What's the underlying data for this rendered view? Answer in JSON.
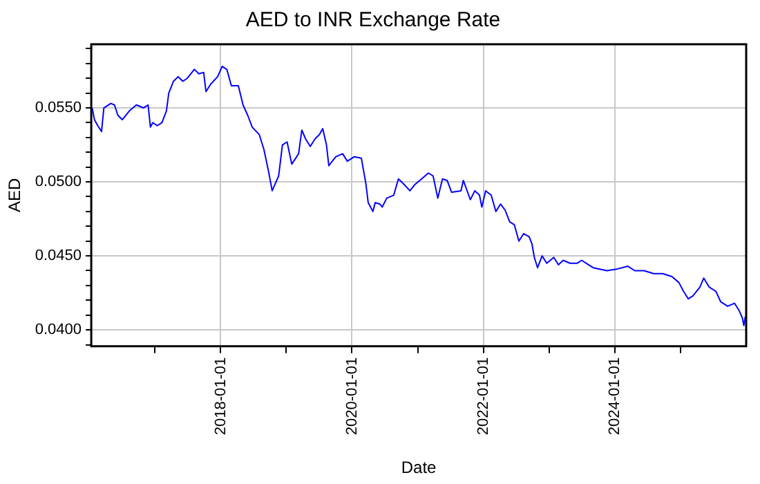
{
  "chart_data": {
    "type": "line",
    "title": "AED to INR Exchange Rate",
    "xlabel": "Date",
    "ylabel": "AED",
    "xlim": [
      "2016-01-12",
      "2026-01-01"
    ],
    "xticks": [
      {
        "value": "2017-01-01",
        "label": null
      },
      "2018-01-01",
      {
        "value": "2019-01-01",
        "label": null
      },
      "2020-01-01",
      {
        "value": "2021-01-01",
        "label": null
      },
      "2022-01-01",
      {
        "value": "2023-01-01",
        "label": null
      },
      "2024-01-01",
      {
        "value": "2025-01-01",
        "label": null
      }
    ],
    "ylim": [
      0.0389,
      0.0593
    ],
    "yticks": [
      {
        "value": 0.039,
        "label": null
      },
      {
        "value": 0.04,
        "label": "0.0400"
      },
      {
        "value": 0.041,
        "label": null
      },
      {
        "value": 0.042,
        "label": null
      },
      {
        "value": 0.043,
        "label": null
      },
      {
        "value": 0.044,
        "label": null
      },
      {
        "value": 0.045,
        "label": "0.0450"
      },
      {
        "value": 0.046,
        "label": null
      },
      {
        "value": 0.047,
        "label": null
      },
      {
        "value": 0.048,
        "label": null
      },
      {
        "value": 0.049,
        "label": null
      },
      {
        "value": 0.05,
        "label": "0.0500"
      },
      {
        "value": 0.051,
        "label": null
      },
      {
        "value": 0.052,
        "label": null
      },
      {
        "value": 0.053,
        "label": null
      },
      {
        "value": 0.054,
        "label": null
      },
      {
        "value": 0.055,
        "label": "0.0550"
      },
      {
        "value": 0.056,
        "label": null
      },
      {
        "value": 0.057,
        "label": null
      },
      {
        "value": 0.058,
        "label": null
      },
      {
        "value": 0.059,
        "label": null
      }
    ],
    "grid": true,
    "legend": false,
    "marker": "none",
    "line_style": "solid",
    "series": [
      {
        "color": "#0000ff",
        "x": [
          "2016-01-17",
          "2016-01-30",
          "2016-02-17",
          "2016-03-09",
          "2016-03-22",
          "2016-04-30",
          "2016-05-20",
          "2016-06-08",
          "2016-07-03",
          "2016-08-11",
          "2016-09-19",
          "2016-10-28",
          "2016-11-23",
          "2016-12-06",
          "2016-12-19",
          "2017-01-13",
          "2017-02-08",
          "2017-03-05",
          "2017-03-18",
          "2017-04-13",
          "2017-05-09",
          "2017-06-04",
          "2017-06-29",
          "2017-08-07",
          "2017-09-02",
          "2017-09-28",
          "2017-10-11",
          "2017-11-06",
          "2017-12-14",
          "2018-01-09",
          "2018-02-04",
          "2018-03-01",
          "2018-04-09",
          "2018-05-05",
          "2018-05-31",
          "2018-06-25",
          "2018-08-03",
          "2018-08-29",
          "2018-09-24",
          "2018-10-14",
          "2018-11-01",
          "2018-11-19",
          "2018-12-10",
          "2019-01-05",
          "2019-01-31",
          "2019-03-10",
          "2019-03-28",
          "2019-04-18",
          "2019-05-14",
          "2019-06-09",
          "2019-07-04",
          "2019-07-22",
          "2019-08-12",
          "2019-08-25",
          "2019-10-03",
          "2019-11-10",
          "2019-12-06",
          "2020-01-14",
          "2020-02-22",
          "2020-03-18",
          "2020-03-31",
          "2020-04-26",
          "2020-05-09",
          "2020-06-04",
          "2020-06-17",
          "2020-07-12",
          "2020-08-20",
          "2020-09-15",
          "2020-10-11",
          "2020-11-18",
          "2020-12-14",
          "2021-01-22",
          "2021-03-01",
          "2021-03-27",
          "2021-04-22",
          "2021-05-18",
          "2021-06-13",
          "2021-07-08",
          "2021-08-29",
          "2021-09-11",
          "2021-10-20",
          "2021-11-14",
          "2021-12-10",
          "2021-12-23",
          "2022-01-13",
          "2022-02-13",
          "2022-03-11",
          "2022-04-06",
          "2022-05-01",
          "2022-05-27",
          "2022-06-22",
          "2022-07-17",
          "2022-08-12",
          "2022-09-12",
          "2022-09-28",
          "2022-10-11",
          "2022-10-29",
          "2022-11-23",
          "2022-12-19",
          "2023-01-27",
          "2023-02-22",
          "2023-03-20",
          "2023-04-28",
          "2023-06-05",
          "2023-07-01",
          "2023-08-08",
          "2023-09-03",
          "2023-11-19",
          "2024-01-10",
          "2024-03-14",
          "2024-04-22",
          "2024-06-13",
          "2024-08-04",
          "2024-09-24",
          "2024-11-14",
          "2024-12-23",
          "2025-01-18",
          "2025-02-13",
          "2025-03-11",
          "2025-04-19",
          "2025-05-10",
          "2025-06-09",
          "2025-07-17",
          "2025-08-12",
          "2025-09-20",
          "2025-10-28",
          "2025-11-23",
          "2025-12-11",
          "2025-12-19",
          "2025-12-27"
        ],
        "values": [
          0.055,
          0.0542,
          0.0538,
          0.0534,
          0.055,
          0.0553,
          0.0552,
          0.0545,
          0.0542,
          0.0548,
          0.0552,
          0.055,
          0.0552,
          0.0537,
          0.054,
          0.0538,
          0.054,
          0.0548,
          0.056,
          0.0568,
          0.0571,
          0.0568,
          0.057,
          0.0576,
          0.0573,
          0.0574,
          0.0561,
          0.0566,
          0.0571,
          0.0578,
          0.0576,
          0.0565,
          0.0565,
          0.0552,
          0.0545,
          0.0537,
          0.0532,
          0.0522,
          0.0507,
          0.0494,
          0.0499,
          0.0504,
          0.0525,
          0.0527,
          0.0512,
          0.0519,
          0.0535,
          0.0529,
          0.0524,
          0.0529,
          0.0532,
          0.0536,
          0.0525,
          0.0511,
          0.0517,
          0.0519,
          0.0514,
          0.0517,
          0.0516,
          0.0499,
          0.0486,
          0.048,
          0.0486,
          0.0485,
          0.0483,
          0.0489,
          0.0491,
          0.0502,
          0.0499,
          0.0494,
          0.0498,
          0.0502,
          0.0506,
          0.0504,
          0.0489,
          0.0502,
          0.0501,
          0.0493,
          0.0494,
          0.0501,
          0.0488,
          0.0494,
          0.0491,
          0.0483,
          0.0494,
          0.0491,
          0.048,
          0.0485,
          0.0481,
          0.0473,
          0.0471,
          0.046,
          0.0465,
          0.0463,
          0.0458,
          0.0449,
          0.0442,
          0.045,
          0.0445,
          0.0449,
          0.0444,
          0.0447,
          0.0445,
          0.0445,
          0.0447,
          0.0444,
          0.0442,
          0.044,
          0.0441,
          0.0443,
          0.044,
          0.044,
          0.0438,
          0.0438,
          0.0436,
          0.0432,
          0.0426,
          0.0421,
          0.0423,
          0.0429,
          0.0435,
          0.0429,
          0.0426,
          0.0419,
          0.0416,
          0.0418,
          0.0413,
          0.0408,
          0.0403,
          0.0409
        ]
      }
    ]
  }
}
